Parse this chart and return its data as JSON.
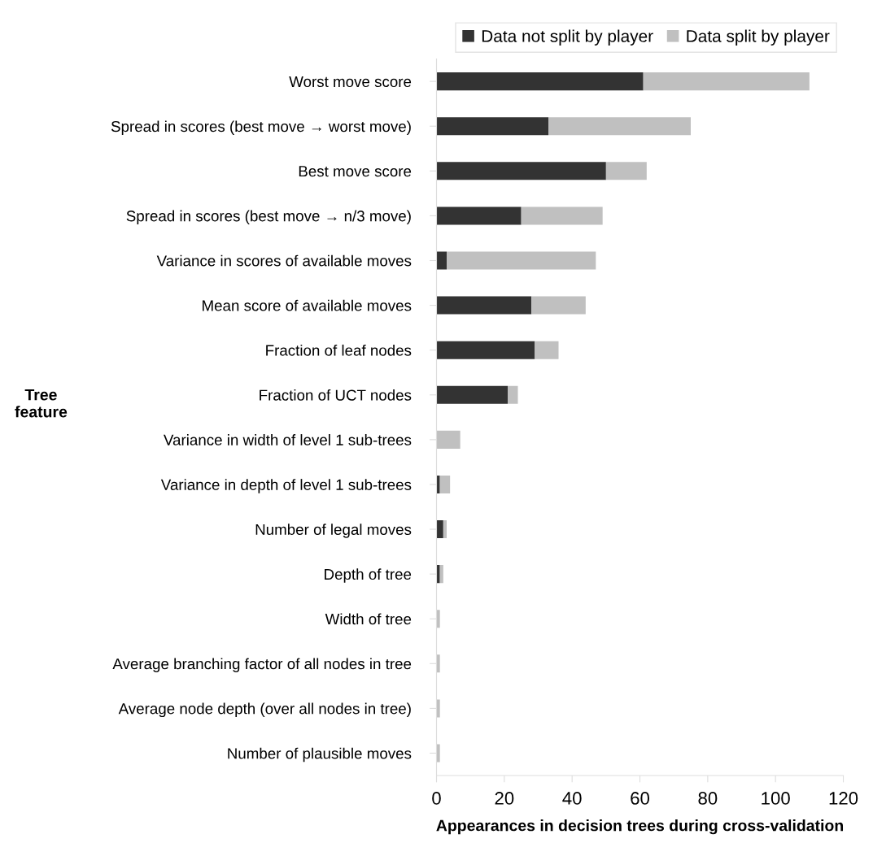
{
  "chart_data": {
    "type": "bar",
    "orientation": "horizontal",
    "stacked": true,
    "xlabel": "Appearances in decision trees during cross-validation",
    "ylabel": "Tree feature",
    "categories": [
      "Worst move score",
      "Spread in scores (best move → worst move)",
      "Best move score",
      "Spread in scores (best move → n/3 move)",
      "Variance in scores of available moves",
      "Mean score of available moves",
      "Fraction of leaf nodes",
      "Fraction of UCT nodes",
      "Variance in width of level 1 sub-trees",
      "Variance in depth of level 1 sub-trees",
      "Number of legal moves",
      "Depth of tree",
      "Width of tree",
      "Average branching factor of all nodes in tree",
      "Average node depth (over all nodes in tree)",
      "Number of plausible moves"
    ],
    "series": [
      {
        "name": "Data not split by player",
        "color": "#333333",
        "values": [
          61,
          33,
          50,
          25,
          3,
          28,
          29,
          21,
          0,
          1,
          2,
          1,
          0,
          0,
          0,
          0
        ]
      },
      {
        "name": "Data split by player",
        "color": "#c0c0c0",
        "values": [
          49,
          42,
          12,
          24,
          44,
          16,
          7,
          3,
          7,
          3,
          1,
          1,
          1,
          1,
          1,
          1
        ]
      }
    ],
    "xlim": [
      0,
      120
    ],
    "xticks": [
      0,
      20,
      40,
      60,
      80,
      100,
      120
    ],
    "grid": false,
    "legend": "top right"
  }
}
